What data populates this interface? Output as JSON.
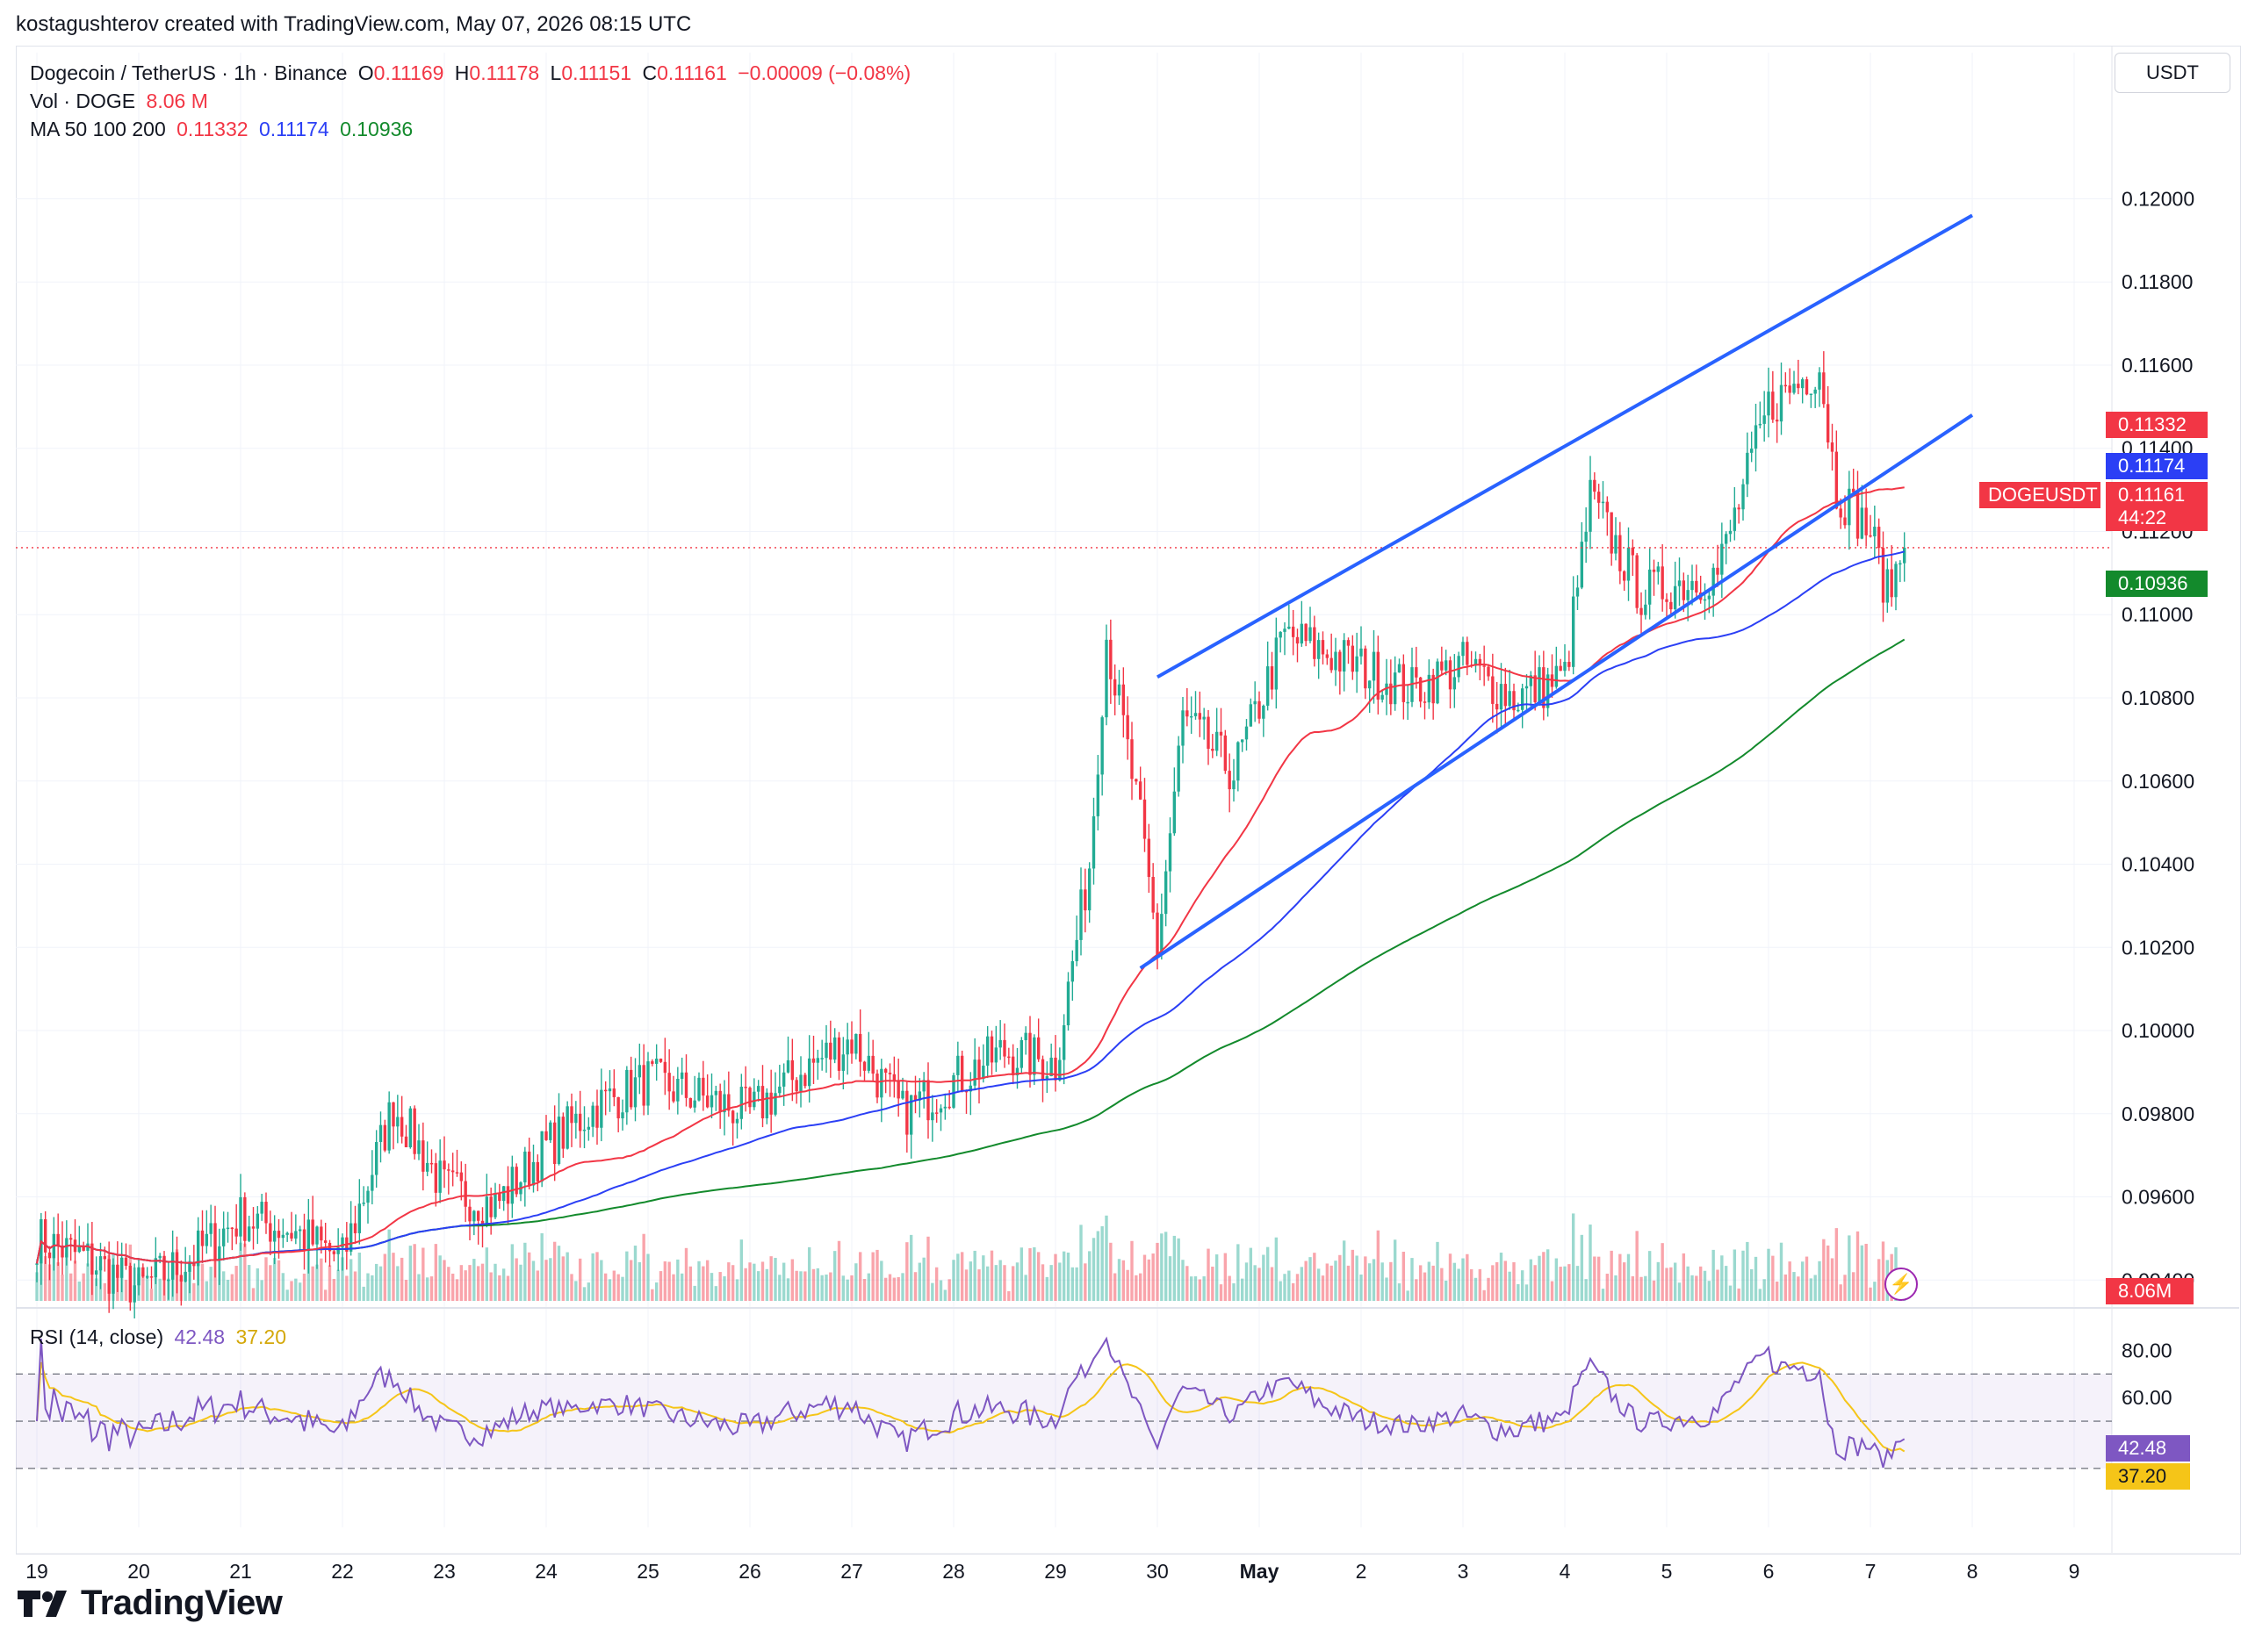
{
  "header": {
    "credit": "kostagushterov created with TradingView.com, May 07, 2026 08:15 UTC"
  },
  "legend": {
    "symbol": "Dogecoin / TetherUS · 1h · Binance",
    "o_label": "O",
    "o_value": "0.11169",
    "h_label": "H",
    "h_value": "0.11178",
    "l_label": "L",
    "l_value": "0.11151",
    "c_label": "C",
    "c_value": "0.11161",
    "change": "−0.00009 (−0.08%)",
    "vol_label": "Vol · DOGE",
    "vol_value": "8.06 M",
    "ma_label": "MA 50 100 200",
    "ma50": "0.11332",
    "ma100": "0.11174",
    "ma200": "0.10936",
    "rsi_label": "RSI (14, close)",
    "rsi_value": "42.48",
    "rsi_ma_value": "37.20"
  },
  "price_scale": {
    "currency": "USDT",
    "ticks": [
      "0.12000",
      "0.11800",
      "0.11600",
      "0.11400",
      "0.11200",
      "0.11000",
      "0.10800",
      "0.10600",
      "0.10400",
      "0.10200",
      "0.10000",
      "0.09800",
      "0.09600",
      "0.09400"
    ],
    "ma50_tag": "0.11332",
    "ma100_tag": "0.11174",
    "symbol_tag": "DOGEUSDT",
    "last_price_tag": "0.11161",
    "countdown": "44:22",
    "ma200_tag": "0.10936",
    "volume_tag": "8.06M"
  },
  "rsi_scale": {
    "ticks": [
      "80.00",
      "60.00"
    ],
    "rsi_tag": "42.48",
    "rsi_ma_tag": "37.20"
  },
  "time_axis": {
    "labels": [
      "19",
      "20",
      "21",
      "22",
      "23",
      "24",
      "25",
      "26",
      "27",
      "28",
      "29",
      "30",
      "May",
      "2",
      "3",
      "4",
      "5",
      "6",
      "7",
      "8",
      "9"
    ]
  },
  "logo": {
    "text": "TradingView"
  },
  "colors": {
    "up": "#22ab94",
    "down": "#f23645",
    "ma50": "#f23645",
    "ma100": "#2b3ff5",
    "ma200": "#138a2c",
    "channel": "#2962ff",
    "rsi": "#7e57c2",
    "rsi_ma": "#f5c518",
    "grid": "#f0f3fa"
  },
  "chart_data": {
    "type": "candlestick",
    "symbol": "DOGEUSDT",
    "interval": "1h",
    "ylim": [
      0.0935,
      0.1225
    ],
    "x_range_days": [
      "Apr 19",
      "May 9"
    ],
    "path_anchors_close": [
      [
        "Apr 19 00:00",
        0.095
      ],
      [
        "Apr 19 12:00",
        0.0945
      ],
      [
        "Apr 20 00:00",
        0.0938
      ],
      [
        "Apr 20 12:00",
        0.0945
      ],
      [
        "Apr 21 00:00",
        0.0955
      ],
      [
        "Apr 21 12:00",
        0.0952
      ],
      [
        "Apr 22 00:00",
        0.0945
      ],
      [
        "Apr 22 12:00",
        0.0982
      ],
      [
        "Apr 23 00:00",
        0.0962
      ],
      [
        "Apr 23 12:00",
        0.0958
      ],
      [
        "Apr 24 00:00",
        0.0972
      ],
      [
        "Apr 24 12:00",
        0.0982
      ],
      [
        "Apr 25 00:00",
        0.0988
      ],
      [
        "Apr 25 12:00",
        0.0984
      ],
      [
        "Apr 26 00:00",
        0.098
      ],
      [
        "Apr 26 12:00",
        0.099
      ],
      [
        "Apr 27 00:00",
        0.0998
      ],
      [
        "Apr 27 12:00",
        0.098
      ],
      [
        "Apr 28 00:00",
        0.0988
      ],
      [
        "Apr 28 12:00",
        0.0995
      ],
      [
        "Apr 29 00:00",
        0.0992
      ],
      [
        "Apr 29 08:00",
        0.104
      ],
      [
        "Apr 29 12:00",
        0.1095
      ],
      [
        "Apr 29 20:00",
        0.105
      ],
      [
        "Apr 30 00:00",
        0.102
      ],
      [
        "Apr 30 06:00",
        0.1075
      ],
      [
        "Apr 30 18:00",
        0.1062
      ],
      [
        "May 1 06:00",
        0.1095
      ],
      [
        "May 1 18:00",
        0.109
      ],
      [
        "May 2 12:00",
        0.1082
      ],
      [
        "May 3 00:00",
        0.1088
      ],
      [
        "May 3 12:00",
        0.108
      ],
      [
        "May 4 00:00",
        0.1085
      ],
      [
        "May 4 06:00",
        0.1128
      ],
      [
        "May 4 18:00",
        0.1105
      ],
      [
        "May 5 12:00",
        0.111
      ],
      [
        "May 6 00:00",
        0.115
      ],
      [
        "May 6 12:00",
        0.116
      ],
      [
        "May 6 16:00",
        0.113
      ],
      [
        "May 7 00:00",
        0.112
      ],
      [
        "May 7 04:00",
        0.1105
      ],
      [
        "May 7 08:00",
        0.1116
      ]
    ],
    "last": {
      "open": 0.11169,
      "high": 0.11178,
      "low": 0.11151,
      "close": 0.11161,
      "change": -9e-05,
      "change_pct": -0.08
    },
    "moving_averages": [
      {
        "name": "MA 50",
        "last": 0.11332
      },
      {
        "name": "MA 100",
        "last": 0.11174
      },
      {
        "name": "MA 200",
        "last": 0.10936
      }
    ],
    "volume_last_millions": 8.06,
    "rsi": {
      "period": 14,
      "last": 42.48,
      "ma_last": 37.2,
      "bands": [
        70,
        50,
        30
      ]
    },
    "channel_lines": [
      {
        "name": "upper",
        "from": [
          "Apr 30 00:00",
          0.1085
        ],
        "to": [
          "May 8 00:00",
          0.1196
        ]
      },
      {
        "name": "lower",
        "from": [
          "Apr 29 20:00",
          0.1015
        ],
        "to": [
          "May 8 00:00",
          0.1148
        ]
      }
    ]
  }
}
